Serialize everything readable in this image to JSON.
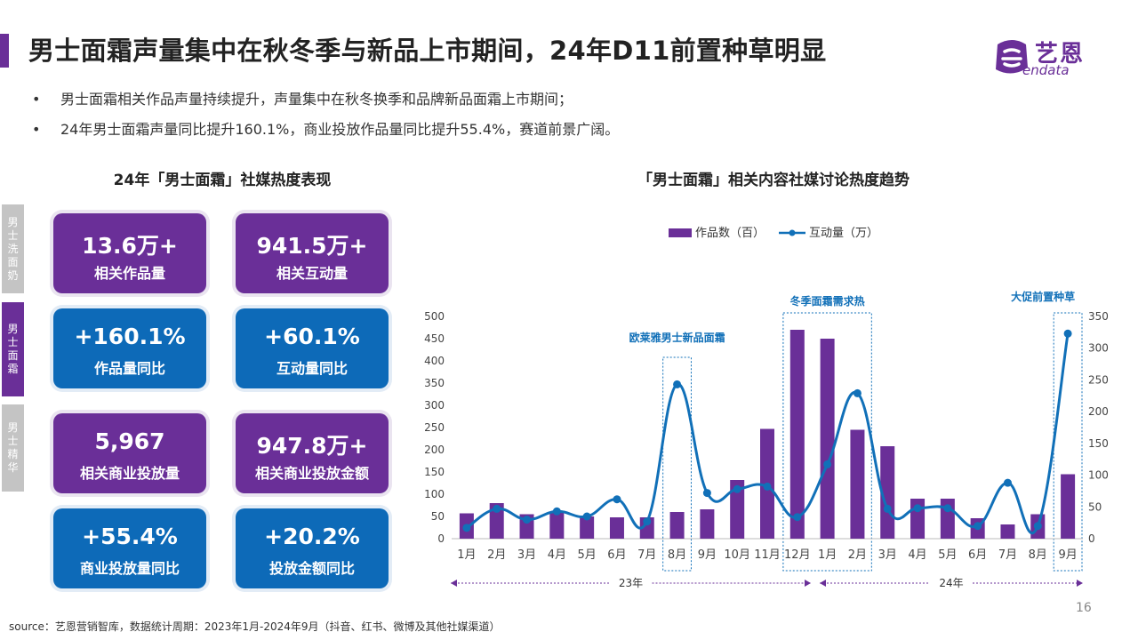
{
  "title": "男士面霜声量集中在秋冬季与新品上市期间，24年D11前置种草明显",
  "logo": {
    "cn": "艺恩",
    "en": "endata"
  },
  "bullets": [
    "男士面霜相关作品声量持续提升，声量集中在秋冬换季和品牌新品面霜上市期间；",
    "24年男士面霜声量同比提升160.1%，商业投放作品量同比提升55.4%，赛道前景广阔。"
  ],
  "left_heading": "24年「男士面霜」社媒热度表现",
  "right_heading": "「男士面霜」相关内容社媒讨论热度趋势",
  "side_tabs": [
    "男士洗面奶",
    "男士面霜",
    "男士精华"
  ],
  "cards": [
    {
      "value": "13.6万+",
      "label": "相关作品量",
      "color": "purple"
    },
    {
      "value": "941.5万+",
      "label": "相关互动量",
      "color": "purple"
    },
    {
      "value": "+160.1%",
      "label": "作品量同比",
      "color": "blue"
    },
    {
      "value": "+60.1%",
      "label": "互动量同比",
      "color": "blue"
    },
    {
      "value": "5,967",
      "label": "相关商业投放量",
      "color": "purple"
    },
    {
      "value": "947.8万+",
      "label": "相关商业投放金额",
      "color": "purple"
    },
    {
      "value": "+55.4%",
      "label": "商业投放量同比",
      "color": "blue"
    },
    {
      "value": "+20.2%",
      "label": "投放金额同比",
      "color": "blue"
    }
  ],
  "chart_data": {
    "type": "bar",
    "categories": [
      "1月",
      "2月",
      "3月",
      "4月",
      "5月",
      "6月",
      "7月",
      "8月",
      "9月",
      "10月",
      "11月",
      "12月",
      "1月",
      "2月",
      "3月",
      "4月",
      "5月",
      "6月",
      "7月",
      "8月",
      "9月"
    ],
    "series": [
      {
        "name": "作品数（百）",
        "type": "bar",
        "axis": "left",
        "values": [
          57,
          80,
          55,
          60,
          50,
          48,
          48,
          60,
          66,
          132,
          247,
          470,
          450,
          245,
          208,
          90,
          90,
          46,
          32,
          55,
          145
        ]
      },
      {
        "name": "互动量（万）",
        "type": "line",
        "axis": "right",
        "values": [
          17,
          47,
          30,
          43,
          35,
          62,
          27,
          243,
          72,
          78,
          82,
          34,
          117,
          229,
          47,
          48,
          48,
          20,
          88,
          20,
          323
        ]
      }
    ],
    "y_left": {
      "min": 0,
      "max": 500,
      "ticks": [
        "0",
        "50",
        "100",
        "150",
        "200",
        "250",
        "300",
        "350",
        "400",
        "450",
        "500"
      ]
    },
    "y_right": {
      "min": 0,
      "max": 350,
      "ticks": [
        "0",
        "50",
        "100",
        "150",
        "200",
        "250",
        "300",
        "350"
      ]
    },
    "year_labels": [
      "23年",
      "24年"
    ],
    "annotations": [
      "欧莱雅男士新品面霜",
      "冬季面霜需求热",
      "大促前置种草"
    ],
    "colors": {
      "bar": "#6a2f98",
      "line": "#1170b8",
      "annotation": "#1170b8"
    },
    "legend_position": "top"
  },
  "source": "source：艺恩营销智库，数据统计周期：2023年1月-2024年9月（抖音、红书、微博及其他社媒渠道）",
  "page_number": "16",
  "colors": {
    "purple": "#6a2f98",
    "blue": "#0d6ab8"
  }
}
